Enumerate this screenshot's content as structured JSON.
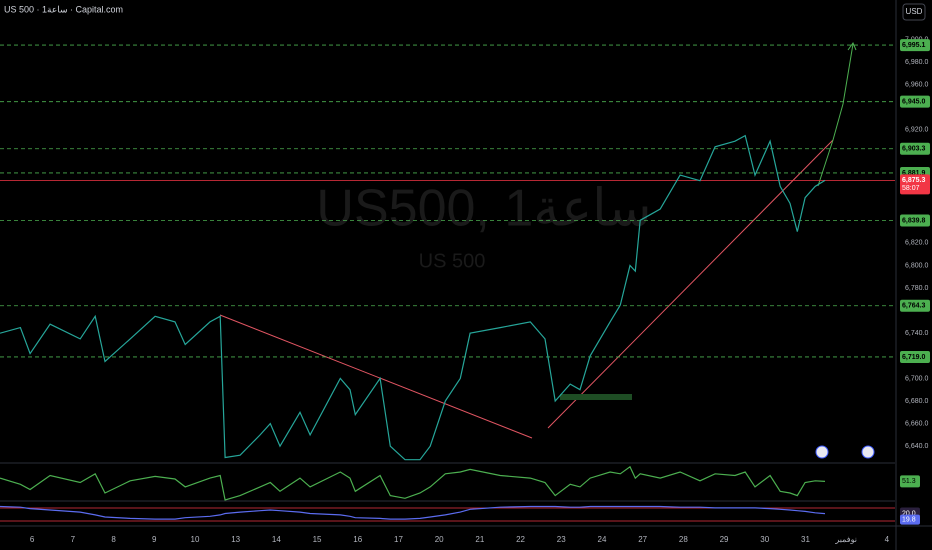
{
  "header": {
    "title": "US 500 · 1ساعة · Capital.com",
    "currency": "USD"
  },
  "watermark": {
    "line1": "US500, 1ساعة",
    "line2": "US 500"
  },
  "chart_data": [
    {
      "type": "line",
      "color": "#26a69a",
      "x": [
        -0.79,
        -0.29,
        -0.05,
        0.44,
        1.18,
        1.55,
        1.79,
        2.41,
        3.02,
        3.51,
        3.76,
        4.37,
        4.62,
        4.74,
        5.11,
        5.6,
        5.85,
        6.09,
        6.58,
        6.83,
        7.57,
        7.81,
        7.94,
        8.55,
        8.8,
        9.16,
        9.53,
        9.78,
        10.15,
        10.52,
        10.76,
        11.5,
        12.24,
        12.6,
        12.85,
        13.22,
        13.46,
        13.71,
        14.2,
        14.45,
        14.69,
        14.82,
        14.94,
        15.43,
        15.92,
        16.41,
        16.78,
        17.27,
        17.52,
        17.76,
        18.13,
        18.38,
        18.62,
        18.8,
        18.99,
        19.24,
        19.48
      ],
      "values": [
        6740,
        6745,
        6722,
        6748,
        6735,
        6755,
        6715,
        6735,
        6755,
        6750,
        6730,
        6750,
        6755,
        6630,
        6632,
        6650,
        6660,
        6640,
        6670,
        6650,
        6700,
        6690,
        6668,
        6700,
        6640,
        6628,
        6628,
        6640,
        6680,
        6700,
        6740,
        6745,
        6750,
        6735,
        6680,
        6695,
        6690,
        6720,
        6750,
        6765,
        6800,
        6795,
        6840,
        6850,
        6880,
        6875,
        6905,
        6910,
        6915,
        6880,
        6910,
        6870,
        6855,
        6830,
        6860,
        6870,
        6875.3
      ],
      "xlim": [
        -0.79,
        21.2
      ],
      "xticks": [
        {
          "value": 0,
          "label": "6"
        },
        {
          "value": 1,
          "label": "7"
        },
        {
          "value": 2,
          "label": "8"
        },
        {
          "value": 3,
          "label": "9"
        },
        {
          "value": 4,
          "label": "10"
        },
        {
          "value": 5,
          "label": "13"
        },
        {
          "value": 6,
          "label": "14"
        },
        {
          "value": 7,
          "label": "15"
        },
        {
          "value": 8,
          "label": "16"
        },
        {
          "value": 9,
          "label": "17"
        },
        {
          "value": 10,
          "label": "20"
        },
        {
          "value": 11,
          "label": "21"
        },
        {
          "value": 12,
          "label": "22"
        },
        {
          "value": 13,
          "label": "23"
        },
        {
          "value": 14,
          "label": "24"
        },
        {
          "value": 15,
          "label": "27"
        },
        {
          "value": 16,
          "label": "28"
        },
        {
          "value": 17,
          "label": "29"
        },
        {
          "value": 18,
          "label": "30"
        },
        {
          "value": 19,
          "label": "31"
        },
        {
          "value": 20,
          "label": "نوفمبر"
        },
        {
          "value": 21,
          "label": "4"
        }
      ],
      "ylim": [
        6626,
        7035
      ],
      "yticks": [
        {
          "value": 7000,
          "label": "7,000.0"
        },
        {
          "value": 6980,
          "label": "6,980.0"
        },
        {
          "value": 6960,
          "label": "6,960.0"
        },
        {
          "value": 6920,
          "label": "6,920.0"
        },
        {
          "value": 6820,
          "label": "6,820.0"
        },
        {
          "value": 6800,
          "label": "6,800.0"
        },
        {
          "value": 6780,
          "label": "6,780.0"
        },
        {
          "value": 6740,
          "label": "6,740.0"
        },
        {
          "value": 6700,
          "label": "6,700.0"
        },
        {
          "value": 6680,
          "label": "6,680.0"
        },
        {
          "value": 6660,
          "label": "6,660.0"
        },
        {
          "value": 6640,
          "label": "6,640.0"
        }
      ],
      "levels": [
        {
          "value": 6995.1,
          "label": "6,995.1"
        },
        {
          "value": 6945.0,
          "label": "6,945.0"
        },
        {
          "value": 6903.3,
          "label": "6,903.3"
        },
        {
          "value": 6881.9,
          "label": "6,881.9"
        },
        {
          "value": 6839.8,
          "label": "6,839.8"
        },
        {
          "value": 6764.3,
          "label": "6,764.3"
        },
        {
          "value": 6719.0,
          "label": "6,719.0"
        }
      ],
      "level_color": "#4caf50",
      "current_price": {
        "value": 6875.3,
        "label": "6,875.3"
      },
      "countdown": "58:07",
      "current_color": "#f23645"
    },
    {
      "type": "line",
      "color": "#4caf50",
      "values": [
        55,
        48,
        42,
        58,
        50,
        60,
        38,
        52,
        57,
        54,
        45,
        55,
        58,
        30,
        35,
        45,
        50,
        40,
        55,
        45,
        62,
        55,
        40,
        58,
        35,
        32,
        38,
        45,
        60,
        62,
        65,
        58,
        55,
        50,
        35,
        48,
        45,
        55,
        62,
        60,
        68,
        55,
        60,
        55,
        62,
        52,
        60,
        58,
        62,
        45,
        58,
        40,
        38,
        35,
        50,
        52,
        51.3
      ],
      "ylim": [
        30,
        70
      ]
    },
    {
      "type": "line",
      "color": "#5b6cf0",
      "values": [
        30,
        29,
        27,
        25,
        22,
        18,
        15,
        13,
        12,
        12,
        14,
        16,
        18,
        20,
        22,
        24,
        25,
        24,
        22,
        20,
        18,
        16,
        14,
        13,
        12,
        12,
        13,
        15,
        18,
        22,
        26,
        29,
        30,
        30,
        30,
        29,
        29,
        30,
        30,
        30,
        30,
        30,
        30,
        30,
        29,
        29,
        28,
        28,
        28,
        28,
        27,
        26,
        25,
        24,
        23,
        21,
        19.8
      ],
      "ylim": [
        5,
        35
      ],
      "level": {
        "value": 20,
        "label": "20.0"
      }
    }
  ]
}
